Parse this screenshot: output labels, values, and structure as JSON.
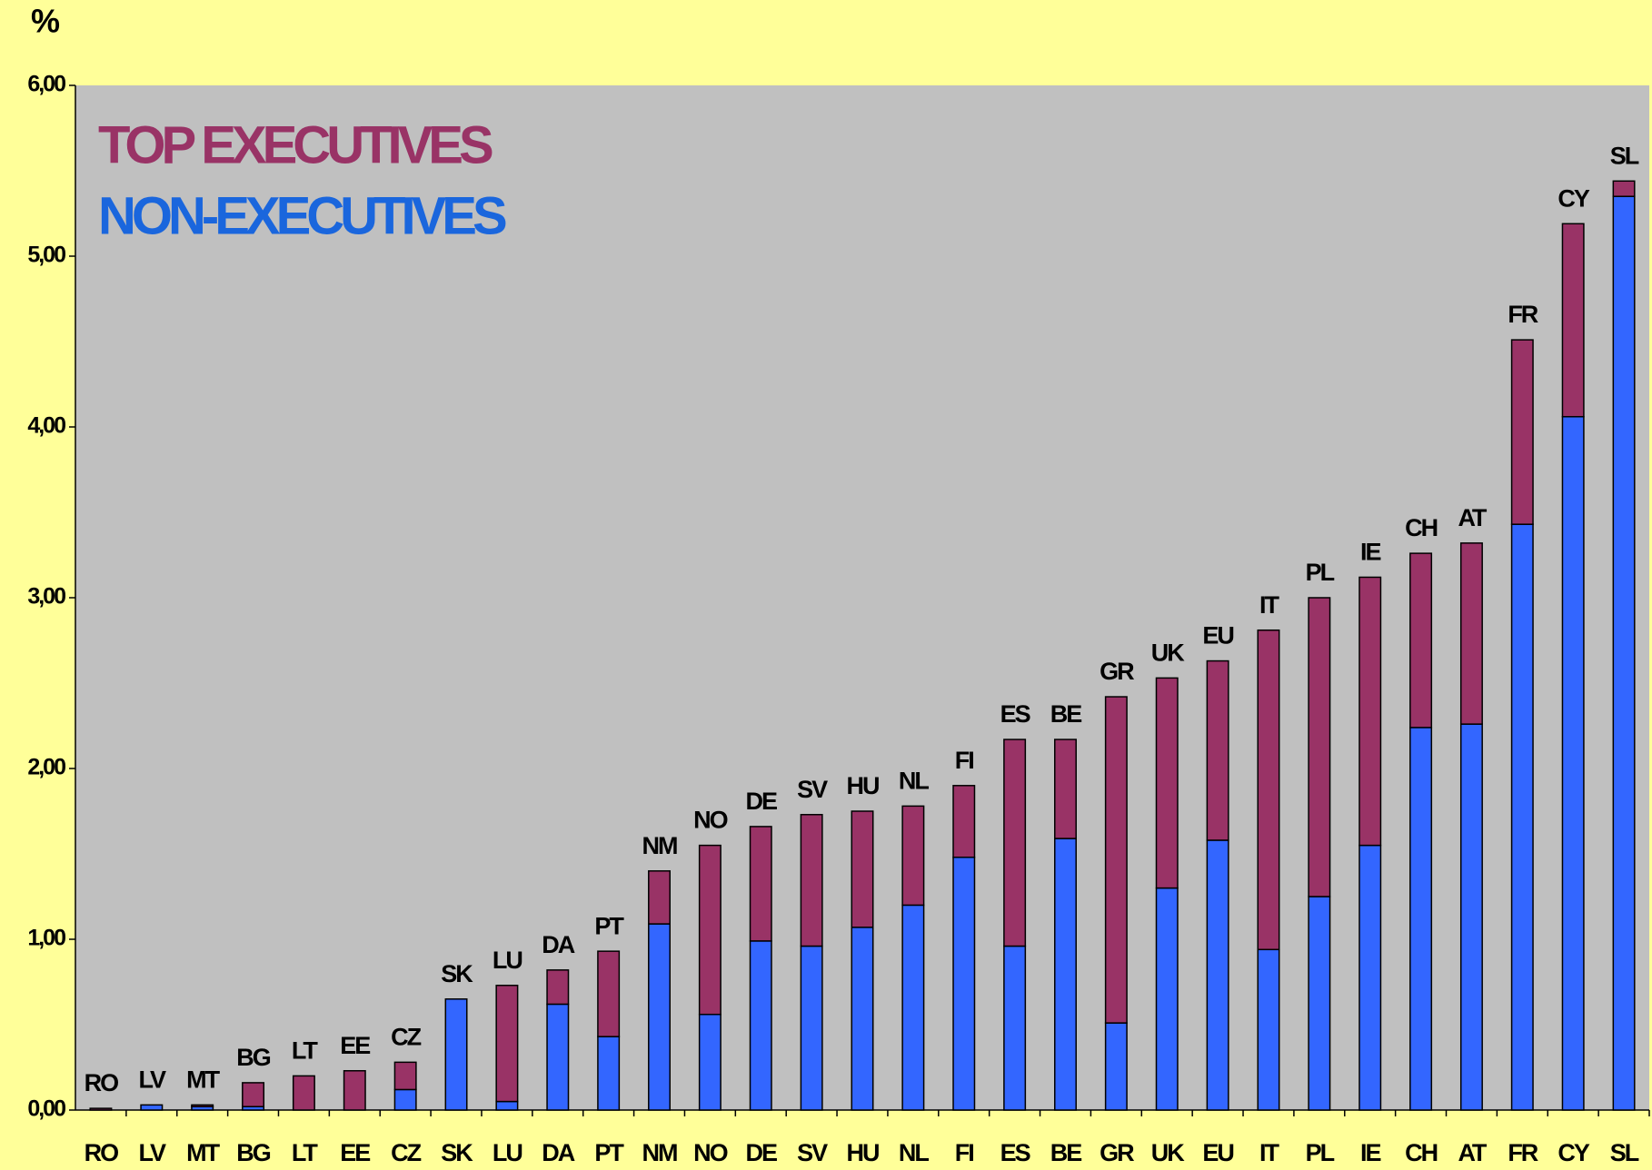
{
  "chart_data": {
    "type": "stacked_bar",
    "y_label": "%",
    "categories": [
      "RO",
      "LV",
      "MT",
      "BG",
      "LT",
      "EE",
      "CZ",
      "SK",
      "LU",
      "DA",
      "PT",
      "NM",
      "NO",
      "DE",
      "SV",
      "HU",
      "NL",
      "FI",
      "ES",
      "BE",
      "GR",
      "UK",
      "EU",
      "IT",
      "PL",
      "IE",
      "CH",
      "AT",
      "FR",
      "CY",
      "SL"
    ],
    "series": [
      {
        "name": "NON-EXECUTIVES",
        "color": "#3366ff",
        "legend_color": "#1a66dd",
        "values": [
          0.0,
          0.03,
          0.02,
          0.02,
          0.0,
          0.0,
          0.12,
          0.65,
          0.05,
          0.62,
          0.43,
          1.09,
          0.56,
          0.99,
          0.96,
          1.07,
          1.2,
          1.48,
          0.96,
          1.59,
          0.51,
          1.3,
          1.58,
          0.94,
          1.25,
          1.55,
          2.24,
          2.26,
          3.43,
          4.06,
          5.35
        ]
      },
      {
        "name": "TOP EXECUTIVES",
        "color": "#993366",
        "legend_color": "#993366",
        "values": [
          0.01,
          0.0,
          0.01,
          0.14,
          0.2,
          0.23,
          0.16,
          0.0,
          0.68,
          0.2,
          0.5,
          0.31,
          0.99,
          0.67,
          0.77,
          0.68,
          0.58,
          0.42,
          1.21,
          0.58,
          1.91,
          1.23,
          1.05,
          1.87,
          1.75,
          1.57,
          1.02,
          1.06,
          1.08,
          1.13,
          0.09
        ]
      }
    ],
    "ylim": [
      0,
      6
    ],
    "yticks": [
      {
        "value": 0,
        "label": "0,00"
      },
      {
        "value": 1,
        "label": "1,00"
      },
      {
        "value": 2,
        "label": "2,00"
      },
      {
        "value": 3,
        "label": "3,00"
      },
      {
        "value": 4,
        "label": "4,00"
      },
      {
        "value": 5,
        "label": "5,00"
      },
      {
        "value": 6,
        "label": "6,00"
      }
    ],
    "background": "#ffff99",
    "plot_background": "#c0c0c0"
  }
}
